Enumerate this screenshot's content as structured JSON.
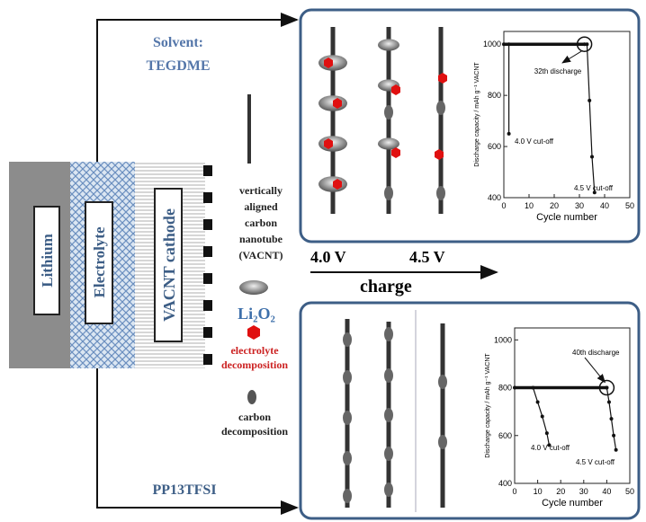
{
  "labels": {
    "lithium": "Lithium",
    "electrolyte": "Electrolyte",
    "cathode": "VACNT cathode",
    "solvent_top": [
      "Solvent:",
      "TEGDME"
    ],
    "solvent_bottom": "PP13TFSI",
    "cnt": [
      "vertically",
      "aligned",
      "carbon",
      "nanotube",
      "(VACNT)"
    ],
    "li2o2": "Li₂O₂",
    "electrolyte_decomp": [
      "electrolyte",
      "decomposition"
    ],
    "carbon_decomp": [
      "carbon",
      "decomposition"
    ],
    "v1": "4.0 V",
    "v2": "4.5 V",
    "charge": "charge"
  },
  "insets": [
    {
      "xlabel": "Cycle number",
      "ylabel": "Discharge capacity / mAh g⁻¹ VACNT",
      "xlim": [
        0,
        50
      ],
      "ylim": [
        400,
        1050
      ],
      "xticks": [
        0,
        10,
        20,
        30,
        40,
        50
      ],
      "yticks": [
        400,
        600,
        800,
        1000
      ],
      "series": [
        {
          "x": [
            0,
            32
          ],
          "values": [
            1000,
            1000
          ]
        },
        {
          "x": [
            2,
            2
          ],
          "values": [
            1000,
            650
          ]
        },
        {
          "x": [
            33,
            34,
            35,
            36
          ],
          "values": [
            1000,
            780,
            560,
            420
          ]
        }
      ],
      "annotations": [
        "32th discharge",
        "4.0 V cut-off",
        "4.5 V cut-off"
      ]
    },
    {
      "xlabel": "Cycle number",
      "ylabel": "Discharge capacity / mAh g⁻¹ VACNT",
      "xlim": [
        0,
        50
      ],
      "ylim": [
        400,
        1050
      ],
      "xticks": [
        0,
        10,
        20,
        30,
        40,
        50
      ],
      "yticks": [
        400,
        600,
        800,
        1000
      ],
      "series": [
        {
          "x": [
            0,
            40
          ],
          "values": [
            800,
            800
          ]
        },
        {
          "x": [
            8,
            10,
            12,
            14,
            15
          ],
          "values": [
            800,
            740,
            680,
            610,
            560
          ]
        },
        {
          "x": [
            40,
            41,
            42,
            43,
            44
          ],
          "values": [
            800,
            740,
            670,
            600,
            540
          ]
        }
      ],
      "annotations": [
        "40th discharge",
        "4.0 V cut-off",
        "4.5 V cut-off"
      ]
    }
  ]
}
